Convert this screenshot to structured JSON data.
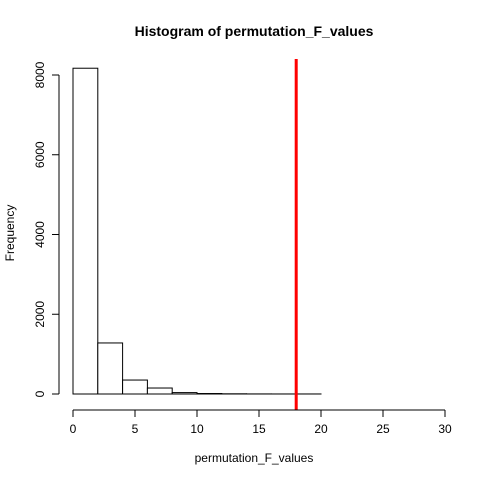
{
  "chart_data": {
    "type": "histogram",
    "title": "Histogram of permutation_F_values",
    "xlabel": "permutation_F_values",
    "ylabel": "Frequency",
    "xlim": [
      0,
      30
    ],
    "ylim": [
      0,
      8500
    ],
    "x_ticks": [
      0,
      5,
      10,
      15,
      20,
      25,
      30
    ],
    "y_ticks": [
      0,
      2000,
      4000,
      6000,
      8000
    ],
    "bin_edges": [
      0,
      2,
      4,
      6,
      8,
      10,
      12,
      14,
      16,
      18,
      20,
      22,
      24,
      26,
      28,
      30
    ],
    "values": [
      8170,
      1280,
      350,
      150,
      35,
      12,
      5,
      2,
      1,
      1,
      0,
      0,
      0,
      0,
      0
    ],
    "reference_line": {
      "x": 18,
      "color": "#ff0000"
    },
    "grid": false,
    "bar_fill": "#ffffff",
    "bar_stroke": "#000000"
  }
}
